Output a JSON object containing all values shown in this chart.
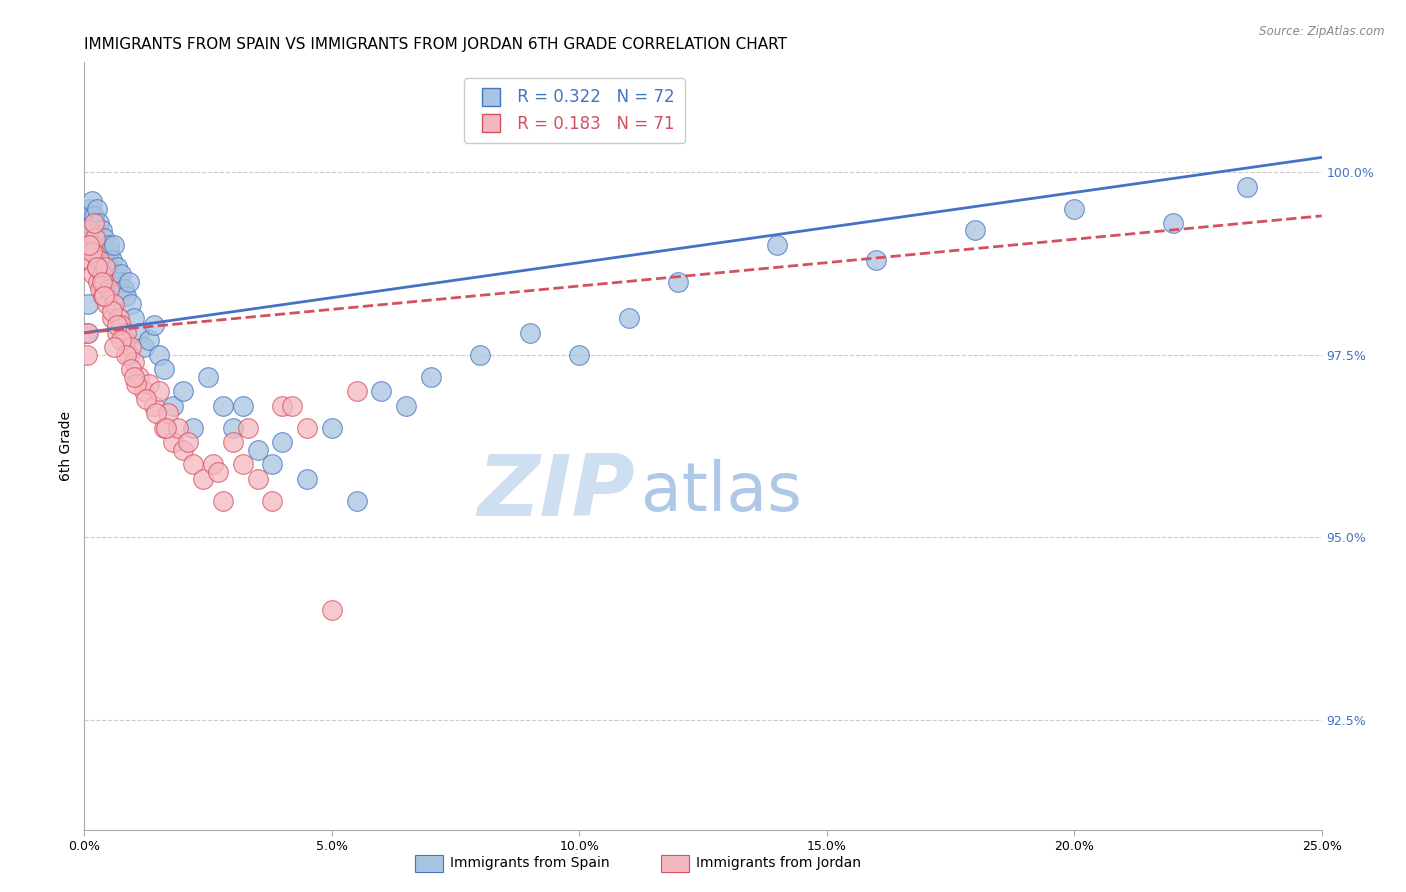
{
  "title": "IMMIGRANTS FROM SPAIN VS IMMIGRANTS FROM JORDAN 6TH GRADE CORRELATION CHART",
  "source": "Source: ZipAtlas.com",
  "ylabel": "6th Grade",
  "legend_spain": "Immigrants from Spain",
  "legend_jordan": "Immigrants from Jordan",
  "R_spain": 0.322,
  "N_spain": 72,
  "R_jordan": 0.183,
  "N_jordan": 71,
  "color_spain": "#a8c4e0",
  "color_jordan": "#f4b8c0",
  "line_color_spain": "#4472c4",
  "line_color_jordan": "#d45060",
  "watermark_zip": "ZIP",
  "watermark_atlas": "atlas",
  "watermark_color_zip": "#cddff0",
  "watermark_color_atlas": "#b0c8e8",
  "xlim": [
    0.0,
    25.0
  ],
  "ylim": [
    91.0,
    101.5
  ],
  "yticks": [
    92.5,
    95.0,
    97.5,
    100.0
  ],
  "ytick_labels": [
    "92.5%",
    "95.0%",
    "97.5%",
    "100.0%"
  ],
  "xticks": [
    0.0,
    5.0,
    10.0,
    15.0,
    20.0,
    25.0
  ],
  "xtick_labels": [
    "0.0%",
    "5.0%",
    "10.0%",
    "15.0%",
    "20.0%",
    "25.0%"
  ],
  "spain_x": [
    0.05,
    0.08,
    0.1,
    0.1,
    0.12,
    0.13,
    0.15,
    0.15,
    0.18,
    0.2,
    0.2,
    0.22,
    0.25,
    0.25,
    0.28,
    0.3,
    0.3,
    0.32,
    0.35,
    0.35,
    0.38,
    0.4,
    0.4,
    0.42,
    0.45,
    0.5,
    0.5,
    0.55,
    0.55,
    0.6,
    0.6,
    0.65,
    0.7,
    0.75,
    0.8,
    0.85,
    0.9,
    0.95,
    1.0,
    1.1,
    1.2,
    1.3,
    1.4,
    1.5,
    1.6,
    1.8,
    2.0,
    2.2,
    2.5,
    2.8,
    3.0,
    3.2,
    3.5,
    3.8,
    4.0,
    4.5,
    5.0,
    5.5,
    6.0,
    6.5,
    7.0,
    8.0,
    9.0,
    10.0,
    11.0,
    12.0,
    14.0,
    16.0,
    18.0,
    20.0,
    22.0,
    23.5
  ],
  "spain_y": [
    97.8,
    98.2,
    99.3,
    99.5,
    99.2,
    99.4,
    99.1,
    99.6,
    99.3,
    99.0,
    99.4,
    99.2,
    99.5,
    98.9,
    99.1,
    99.3,
    98.7,
    99.0,
    98.8,
    99.2,
    98.9,
    99.1,
    98.6,
    98.8,
    98.7,
    98.9,
    99.0,
    98.5,
    98.8,
    98.6,
    99.0,
    98.7,
    98.5,
    98.6,
    98.4,
    98.3,
    98.5,
    98.2,
    98.0,
    97.8,
    97.6,
    97.7,
    97.9,
    97.5,
    97.3,
    96.8,
    97.0,
    96.5,
    97.2,
    96.8,
    96.5,
    96.8,
    96.2,
    96.0,
    96.3,
    95.8,
    96.5,
    95.5,
    97.0,
    96.8,
    97.2,
    97.5,
    97.8,
    97.5,
    98.0,
    98.5,
    99.0,
    98.8,
    99.2,
    99.5,
    99.3,
    99.8
  ],
  "jordan_x": [
    0.05,
    0.08,
    0.1,
    0.12,
    0.15,
    0.18,
    0.2,
    0.22,
    0.25,
    0.28,
    0.3,
    0.32,
    0.35,
    0.38,
    0.4,
    0.42,
    0.45,
    0.5,
    0.55,
    0.6,
    0.65,
    0.7,
    0.75,
    0.8,
    0.85,
    0.9,
    0.95,
    1.0,
    1.1,
    1.2,
    1.3,
    1.4,
    1.5,
    1.6,
    1.7,
    1.8,
    1.9,
    2.0,
    2.2,
    2.4,
    2.6,
    2.8,
    3.0,
    3.2,
    3.5,
    3.8,
    4.0,
    4.5,
    5.0,
    0.15,
    0.25,
    0.35,
    0.55,
    0.65,
    0.75,
    0.85,
    0.95,
    1.05,
    1.25,
    1.45,
    1.65,
    2.1,
    2.7,
    3.3,
    4.2,
    5.5,
    0.1,
    0.2,
    0.4,
    0.6,
    1.0
  ],
  "jordan_y": [
    97.5,
    97.8,
    99.2,
    98.8,
    99.0,
    98.6,
    98.9,
    99.1,
    98.7,
    98.5,
    98.8,
    98.4,
    98.6,
    98.3,
    98.5,
    98.7,
    98.2,
    98.4,
    98.0,
    98.2,
    97.8,
    98.0,
    97.9,
    97.7,
    97.8,
    97.5,
    97.6,
    97.4,
    97.2,
    97.0,
    97.1,
    96.8,
    97.0,
    96.5,
    96.7,
    96.3,
    96.5,
    96.2,
    96.0,
    95.8,
    96.0,
    95.5,
    96.3,
    96.0,
    95.8,
    95.5,
    96.8,
    96.5,
    94.0,
    98.9,
    98.7,
    98.5,
    98.1,
    97.9,
    97.7,
    97.5,
    97.3,
    97.1,
    96.9,
    96.7,
    96.5,
    96.3,
    95.9,
    96.5,
    96.8,
    97.0,
    99.0,
    99.3,
    98.3,
    97.6,
    97.2
  ],
  "grid_color": "#cccccc",
  "right_axis_color": "#4472c4",
  "title_fontsize": 11,
  "axis_label_fontsize": 10,
  "tick_fontsize": 9,
  "legend_fontsize": 12
}
